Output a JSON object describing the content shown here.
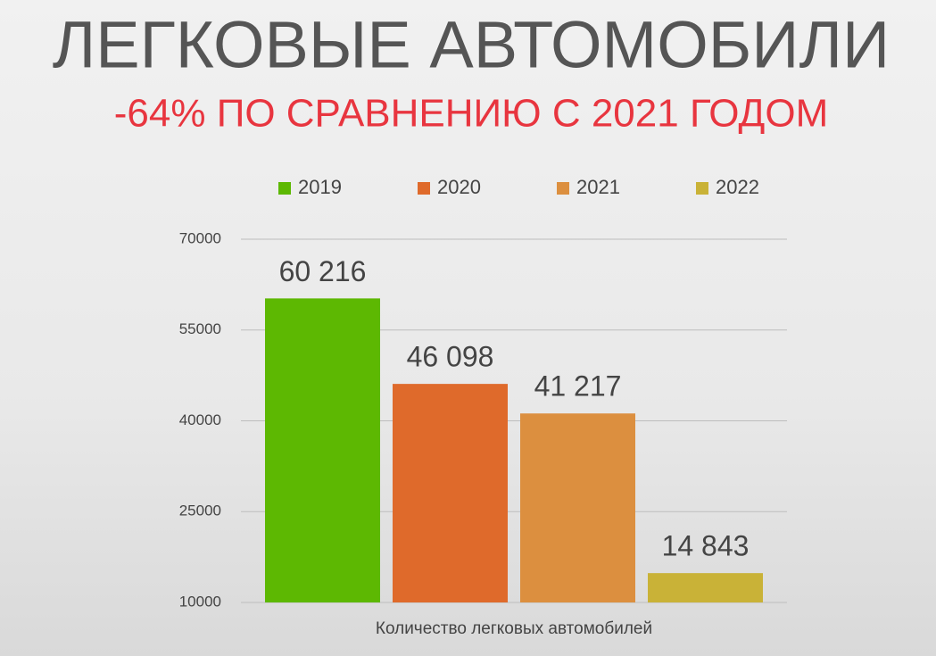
{
  "chart_data": {
    "type": "bar",
    "title": "ЛЕГКОВЫЕ АВТОМОБИЛИ",
    "subtitle": "-64% ПО СРАВНЕНИЮ С 2021 ГОДОМ",
    "categories": [
      "Количество легковых автомобилей"
    ],
    "series": [
      {
        "name": "2019",
        "color": "#5db802",
        "values": [
          60216
        ],
        "value_labels": [
          "60 216"
        ]
      },
      {
        "name": "2020",
        "color": "#df6a2b",
        "values": [
          46098
        ],
        "value_labels": [
          "46 098"
        ]
      },
      {
        "name": "2021",
        "color": "#dc8f3f",
        "values": [
          41217
        ],
        "value_labels": [
          "41 217"
        ]
      },
      {
        "name": "2022",
        "color": "#c9b237",
        "values": [
          14843
        ],
        "value_labels": [
          "14 843"
        ]
      }
    ],
    "ylim": [
      10000,
      70000
    ],
    "yticks": [
      10000,
      25000,
      40000,
      55000,
      70000
    ],
    "grid": true,
    "legend": "top"
  }
}
